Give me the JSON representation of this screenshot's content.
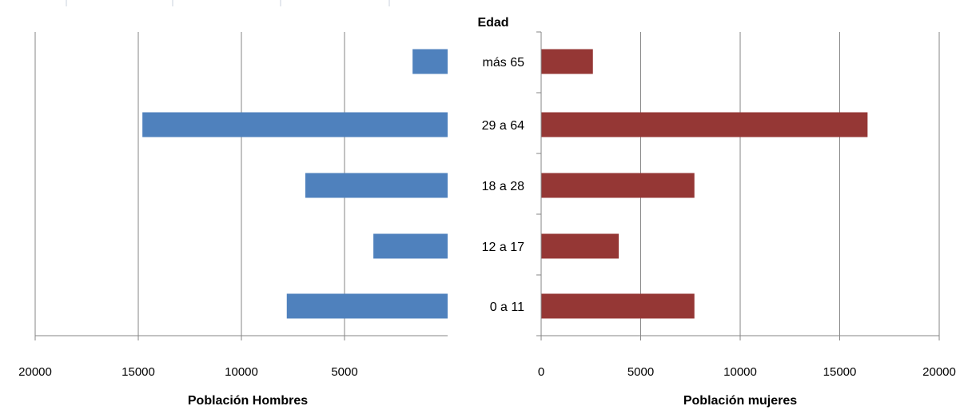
{
  "chart_data": {
    "type": "bar",
    "orientation": "horizontal",
    "layout": "population-pyramid",
    "category_axis_title": "Edad",
    "categories": [
      "0 a 11",
      "12 a 17",
      "18 a 28",
      "29 a 64",
      "más 65"
    ],
    "left_panel": {
      "xlabel": "Población Hombres",
      "xlim": [
        0,
        20000
      ],
      "ticks": [
        20000,
        15000,
        10000,
        5000
      ],
      "series": [
        {
          "values": [
            7800,
            3600,
            6900,
            14800,
            1700
          ],
          "color": "#4F81BD"
        }
      ]
    },
    "right_panel": {
      "xlabel": "Población mujeres",
      "xlim": [
        0,
        20000
      ],
      "ticks": [
        0,
        5000,
        10000,
        15000,
        20000
      ],
      "series": [
        {
          "values": [
            7700,
            3900,
            7700,
            16400,
            2600
          ],
          "color": "#953735"
        }
      ]
    },
    "grid": true,
    "legend": "none"
  }
}
